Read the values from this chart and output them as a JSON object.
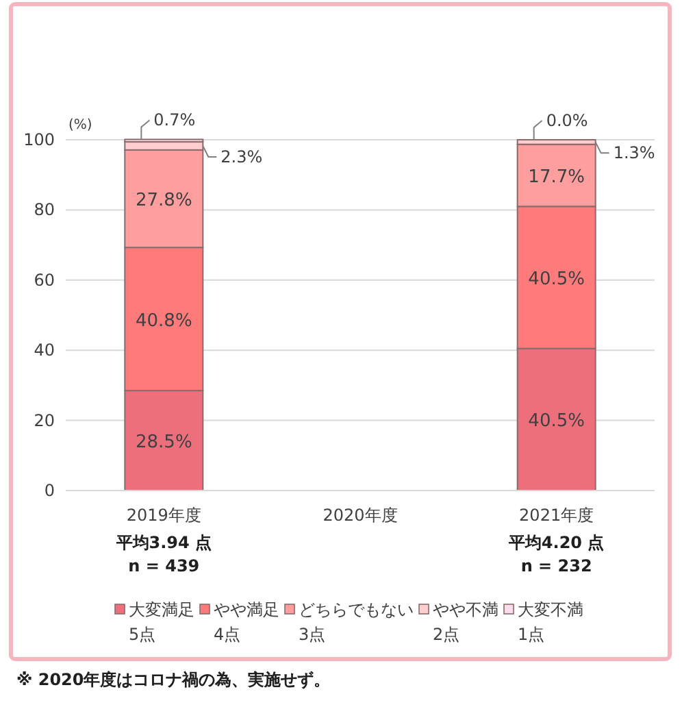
{
  "chart_data": {
    "type": "bar",
    "stacked": true,
    "ylabel": "(%)",
    "categories": [
      "2019年度",
      "2020年度",
      "2021年度"
    ],
    "ylim": [
      0,
      100
    ],
    "yticks": [
      0,
      20,
      40,
      60,
      80,
      100
    ],
    "grid": "y",
    "legend": "bottom",
    "series": [
      {
        "name": "大変満足\n5点",
        "color": "#ee6f7c",
        "values": [
          28.5,
          null,
          40.5
        ],
        "value_labels": [
          "28.5%",
          null,
          "40.5%"
        ]
      },
      {
        "name": "やや満足\n4点",
        "color": "#ff7b7b",
        "values": [
          40.8,
          null,
          40.5
        ],
        "value_labels": [
          "40.8%",
          null,
          "40.5%"
        ]
      },
      {
        "name": "どちらでもない\n3点",
        "color": "#ff9e9e",
        "values": [
          27.8,
          null,
          17.7
        ],
        "value_labels": [
          "27.8%",
          null,
          "17.7%"
        ]
      },
      {
        "name": "やや不満\n2点",
        "color": "#ffcfcf",
        "values": [
          2.3,
          null,
          1.3
        ],
        "value_labels": [
          "2.3%",
          null,
          "1.3%"
        ]
      },
      {
        "name": "大変不満\n1点",
        "color": "#ffdcea",
        "values": [
          0.7,
          null,
          0.0
        ],
        "value_labels": [
          "0.7%",
          null,
          "0.0%"
        ]
      }
    ],
    "annotations": [
      "平均3.94 点\nn = 439",
      "平均4.20 点\nn = 232",
      "※ 2020年度はコロナ禍の為、実施せず。"
    ]
  }
}
